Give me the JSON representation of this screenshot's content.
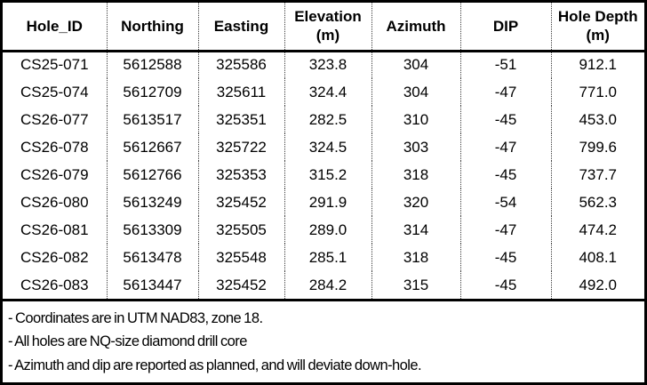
{
  "table": {
    "headers": [
      {
        "label": "Hole_ID",
        "unit": ""
      },
      {
        "label": "Northing",
        "unit": ""
      },
      {
        "label": "Easting",
        "unit": ""
      },
      {
        "label": "Elevation",
        "unit": "(m)"
      },
      {
        "label": "Azimuth",
        "unit": ""
      },
      {
        "label": "DIP",
        "unit": ""
      },
      {
        "label": "Hole Depth",
        "unit": "(m)"
      }
    ],
    "rows": [
      [
        "CS25-071",
        "5612588",
        "325586",
        "323.8",
        "304",
        "-51",
        "912.1"
      ],
      [
        "CS25-074",
        "5612709",
        "325611",
        "324.4",
        "304",
        "-47",
        "771.0"
      ],
      [
        "CS26-077",
        "5613517",
        "325351",
        "282.5",
        "310",
        "-45",
        "453.0"
      ],
      [
        "CS26-078",
        "5612667",
        "325722",
        "324.5",
        "303",
        "-47",
        "799.6"
      ],
      [
        "CS26-079",
        "5612766",
        "325353",
        "315.2",
        "318",
        "-45",
        "737.7"
      ],
      [
        "CS26-080",
        "5613249",
        "325452",
        "291.9",
        "320",
        "-54",
        "562.3"
      ],
      [
        "CS26-081",
        "5613309",
        "325505",
        "289.0",
        "314",
        "-47",
        "474.2"
      ],
      [
        "CS26-082",
        "5613478",
        "325548",
        "285.1",
        "318",
        "-45",
        "408.1"
      ],
      [
        "CS26-083",
        "5613447",
        "325452",
        "284.2",
        "315",
        "-45",
        "492.0"
      ]
    ]
  },
  "notes": [
    "- Coordinates are in UTM NAD83, zone 18.",
    "- All holes are NQ-size diamond drill core",
    "- Azimuth and dip are reported as planned, and will deviate down-hole."
  ],
  "colors": {
    "border": "#000000",
    "column_separator": "#3c3c3c",
    "text": "#000000",
    "background": "#ffffff"
  }
}
